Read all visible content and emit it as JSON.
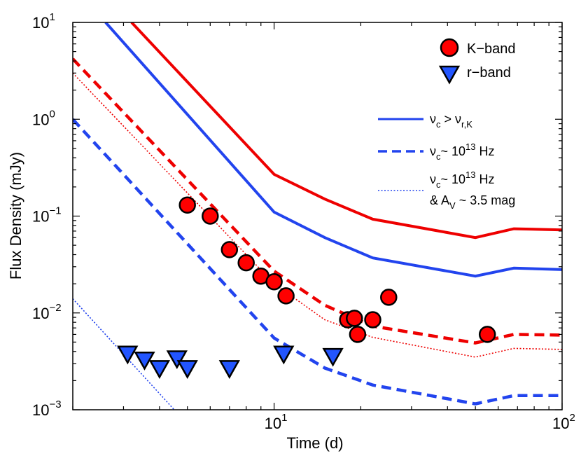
{
  "chart_data": {
    "type": "line",
    "xlabel": "Time  (d)",
    "ylabel": "Flux Density  (mJy)",
    "xscale": "log",
    "yscale": "log",
    "xlim": [
      2,
      100
    ],
    "ylim": [
      0.001,
      10
    ],
    "x_ticks": [
      {
        "base": "10",
        "exp": "1",
        "value": 10
      },
      {
        "base": "10",
        "exp": "2",
        "value": 100
      }
    ],
    "y_ticks": [
      {
        "base": "10",
        "exp": "1",
        "value": 10
      },
      {
        "base": "10",
        "exp": "0",
        "value": 1
      },
      {
        "base": "10",
        "exp": "−1",
        "value": 0.1
      },
      {
        "base": "10",
        "exp": "−2",
        "value": 0.01
      },
      {
        "base": "10",
        "exp": "−3",
        "value": 0.001
      }
    ],
    "legend_position": "top-right",
    "series": [
      {
        "name": "K-band",
        "kind": "scatter",
        "marker": "circle",
        "color": "#ff0000",
        "x": [
          5.0,
          6.0,
          7.0,
          8.0,
          9.0,
          10.0,
          11.0,
          18.0,
          19.0,
          19.5,
          22.0,
          25.0,
          55.0
        ],
        "y": [
          0.13,
          0.1,
          0.045,
          0.033,
          0.024,
          0.021,
          0.015,
          0.0085,
          0.0088,
          0.006,
          0.0085,
          0.0145,
          0.006
        ]
      },
      {
        "name": "r-band",
        "kind": "scatter",
        "marker": "triangle-down",
        "color": "#2255ff",
        "x": [
          3.1,
          3.55,
          4.0,
          4.6,
          5.0,
          7.0,
          10.8,
          16.0
        ],
        "y": [
          0.0038,
          0.0033,
          0.0027,
          0.0034,
          0.0027,
          0.0027,
          0.0038,
          0.0036
        ]
      },
      {
        "name": "red-solid",
        "kind": "line",
        "color": "#ee0000",
        "style": "solid",
        "x": [
          3.2,
          10.0,
          15.0,
          22.0,
          50.0,
          68.0,
          100.0
        ],
        "y": [
          10.0,
          0.27,
          0.15,
          0.093,
          0.06,
          0.074,
          0.072
        ]
      },
      {
        "name": "blue-solid",
        "kind": "line",
        "color": "#2244ee",
        "style": "solid",
        "x": [
          2.6,
          10.0,
          15.0,
          22.0,
          50.0,
          68.0,
          100.0
        ],
        "y": [
          10.0,
          0.11,
          0.06,
          0.037,
          0.024,
          0.029,
          0.028
        ]
      },
      {
        "name": "red-dashed",
        "kind": "line",
        "color": "#ee0000",
        "style": "dashed",
        "x": [
          2.0,
          10.0,
          15.0,
          22.0,
          50.0,
          68.0,
          100.0
        ],
        "y": [
          4.2,
          0.027,
          0.012,
          0.0073,
          0.0049,
          0.006,
          0.0059
        ]
      },
      {
        "name": "red-dotted",
        "kind": "line",
        "color": "#ee0000",
        "style": "dotted",
        "x": [
          2.0,
          10.0,
          15.0,
          22.0,
          50.0,
          68.0,
          100.0
        ],
        "y": [
          3.0,
          0.02,
          0.0085,
          0.0056,
          0.0035,
          0.0043,
          0.0042
        ]
      },
      {
        "name": "blue-dashed",
        "kind": "line",
        "color": "#2244ee",
        "style": "dashed",
        "x": [
          2.0,
          10.0,
          15.0,
          22.0,
          50.0,
          68.0,
          100.0
        ],
        "y": [
          1.0,
          0.0055,
          0.0027,
          0.0018,
          0.00115,
          0.0014,
          0.0014
        ]
      },
      {
        "name": "blue-dotted",
        "kind": "line",
        "color": "#2244ee",
        "style": "dotted",
        "x": [
          2.0,
          4.5
        ],
        "y": [
          0.014,
          0.001
        ]
      }
    ],
    "legend": {
      "kband": "K−band",
      "rband": "r−band",
      "line1": {
        "nu": "ν",
        "c": "c",
        "gt": " > ",
        "nu2": "ν",
        "rk": "r,K"
      },
      "line2": {
        "nu": "ν",
        "c": "c",
        "rest": "~ 10",
        "exp": "13",
        "unit": " Hz"
      },
      "line3": {
        "nu": "ν",
        "c": "c",
        "rest": "~ 10",
        "exp": "13",
        "unit": " Hz",
        "l2a": "& A",
        "l2sub": "V",
        "l2b": " ~ 3.5 mag"
      }
    }
  }
}
